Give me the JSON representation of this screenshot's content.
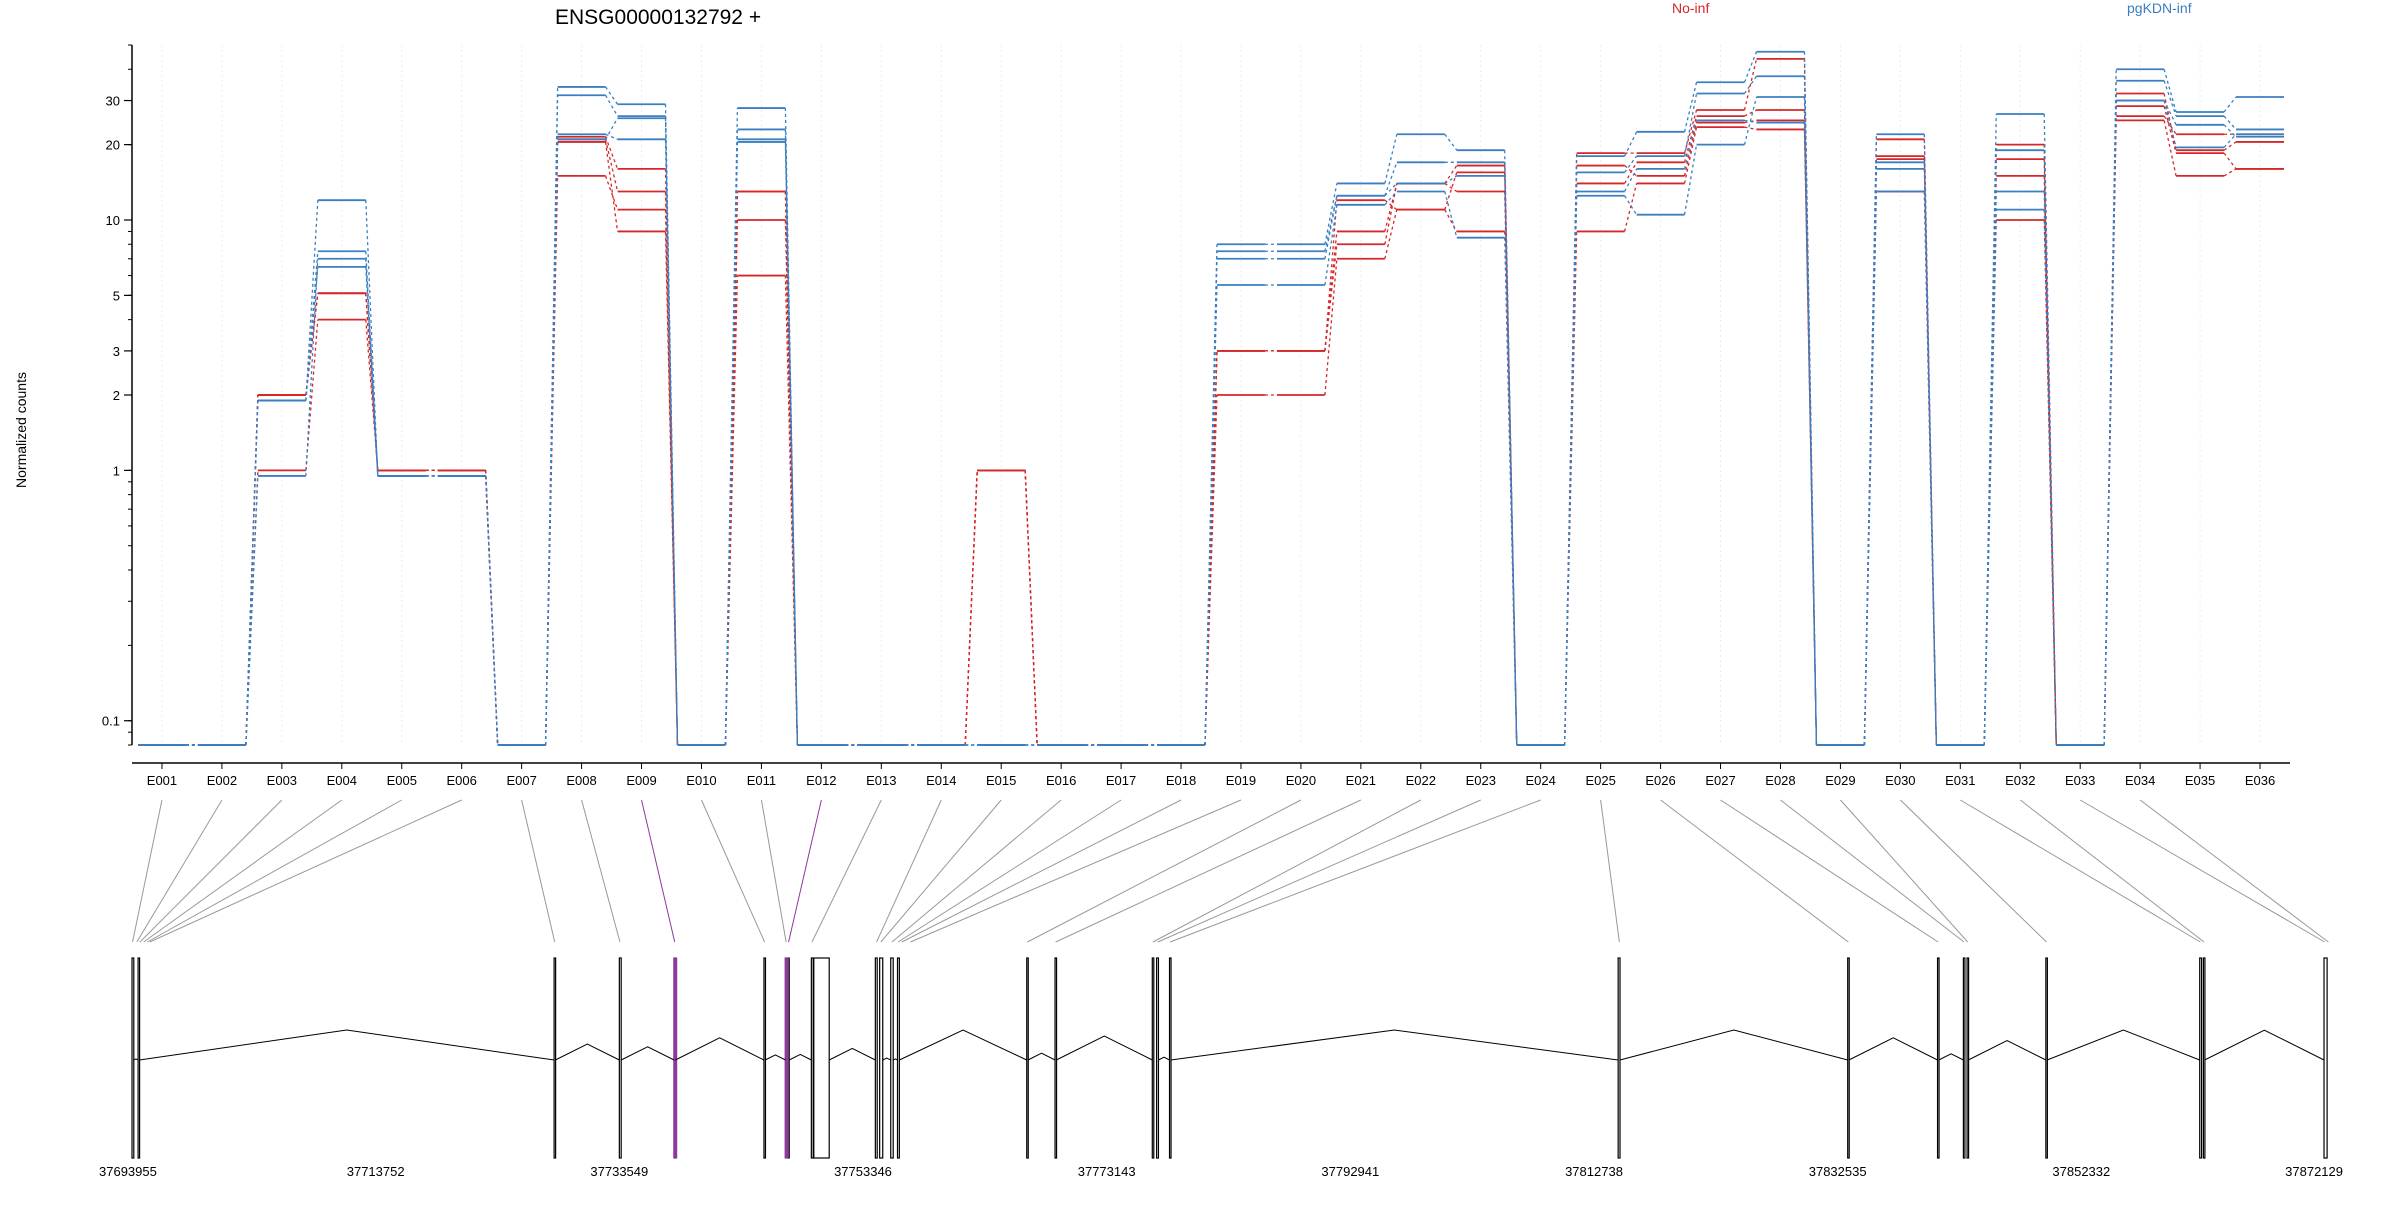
{
  "chart_data": {
    "type": "line",
    "title": "ENSG00000132792 +",
    "ylabel": "Normalized counts",
    "yscale": "log",
    "ylim": [
      0.08,
      50
    ],
    "yticks": [
      0.1,
      1,
      2,
      3,
      5,
      10,
      20,
      30
    ],
    "ytick_labels": [
      "0.1",
      "1",
      "2",
      "3",
      "5",
      "10",
      "20",
      "30"
    ],
    "categories": [
      "E001",
      "E002",
      "E003",
      "E004",
      "E005",
      "E006",
      "E007",
      "E008",
      "E009",
      "E010",
      "E011",
      "E012",
      "E013",
      "E014",
      "E015",
      "E016",
      "E017",
      "E018",
      "E019",
      "E020",
      "E021",
      "E022",
      "E023",
      "E024",
      "E025",
      "E026",
      "E027",
      "E028",
      "E029",
      "E030",
      "E031",
      "E032",
      "E033",
      "E034",
      "E035",
      "E036"
    ],
    "legend": [
      {
        "label": "No-inf",
        "color": "#d62728"
      },
      {
        "label": "pgKDN-inf",
        "color": "#3a7fc1"
      }
    ],
    "series": [
      {
        "group": "No-inf",
        "color": "#d62728",
        "values": [
          0.08,
          0.08,
          2.0,
          5.1,
          1.0,
          1.0,
          0.08,
          21.5,
          16.0,
          0.08,
          13.0,
          0.08,
          0.08,
          0.08,
          1.0,
          0.08,
          0.08,
          0.08,
          3.0,
          3.0,
          9.0,
          14.0,
          16.5,
          0.08,
          18.5,
          18.5,
          27.5,
          44.0,
          0.08,
          21.0,
          0.08,
          20.0,
          0.08,
          32.0,
          19.0,
          20.5
        ]
      },
      {
        "group": "No-inf",
        "color": "#d62728",
        "values": [
          0.08,
          0.08,
          1.0,
          4.0,
          1.0,
          1.0,
          0.08,
          21.0,
          13.0,
          0.08,
          10.0,
          0.08,
          0.08,
          0.08,
          1.0,
          0.08,
          0.08,
          0.08,
          3.0,
          3.0,
          8.0,
          14.0,
          13.0,
          0.08,
          14.0,
          17.0,
          26.0,
          27.5,
          0.08,
          18.0,
          0.08,
          17.5,
          0.08,
          28.5,
          18.5,
          16.0
        ]
      },
      {
        "group": "No-inf",
        "color": "#d62728",
        "values": [
          0.08,
          0.08,
          2.0,
          5.1,
          1.0,
          1.0,
          0.08,
          15.0,
          11.0,
          0.08,
          6.0,
          0.08,
          0.08,
          0.08,
          1.0,
          0.08,
          0.08,
          0.08,
          2.0,
          2.0,
          7.0,
          11.0,
          9.0,
          0.08,
          9.0,
          14.0,
          23.5,
          23.0,
          0.08,
          13.0,
          0.08,
          15.0,
          0.08,
          25.0,
          15.0,
          16.0
        ]
      },
      {
        "group": "No-inf",
        "color": "#d62728",
        "values": [
          0.08,
          0.08,
          2.0,
          5.1,
          1.0,
          1.0,
          0.08,
          20.5,
          9.0,
          0.08,
          13.0,
          0.08,
          0.08,
          0.08,
          1.0,
          0.08,
          0.08,
          0.08,
          3.0,
          3.0,
          12.0,
          11.0,
          15.5,
          0.08,
          16.5,
          15.0,
          24.5,
          25.0,
          0.08,
          17.5,
          0.08,
          10.0,
          0.08,
          26.0,
          22.0,
          22.0
        ]
      },
      {
        "group": "pgKDN-inf",
        "color": "#3a7fc1",
        "values": [
          0.08,
          0.08,
          0.95,
          7.0,
          0.95,
          0.95,
          0.08,
          34.0,
          29.0,
          0.08,
          28.0,
          0.08,
          0.08,
          0.08,
          0.08,
          0.08,
          0.08,
          0.08,
          8.0,
          8.0,
          14.0,
          22.0,
          19.0,
          0.08,
          18.0,
          22.5,
          35.5,
          47.0,
          0.08,
          22.0,
          0.08,
          26.5,
          0.08,
          40.0,
          27.0,
          31.0
        ]
      },
      {
        "group": "pgKDN-inf",
        "color": "#3a7fc1",
        "values": [
          0.08,
          0.08,
          1.9,
          12.0,
          0.95,
          0.95,
          0.08,
          31.5,
          26.0,
          0.08,
          23.0,
          0.08,
          0.08,
          0.08,
          0.08,
          0.08,
          0.08,
          0.08,
          7.5,
          7.5,
          12.5,
          17.0,
          17.0,
          0.08,
          15.5,
          18.0,
          32.0,
          37.5,
          0.08,
          17.0,
          0.08,
          19.0,
          0.08,
          36.0,
          26.0,
          23.0
        ]
      },
      {
        "group": "pgKDN-inf",
        "color": "#3a7fc1",
        "values": [
          0.08,
          0.08,
          1.9,
          6.5,
          0.95,
          0.95,
          0.08,
          22.0,
          21.0,
          0.08,
          21.0,
          0.08,
          0.08,
          0.08,
          0.08,
          0.08,
          0.08,
          0.08,
          5.5,
          5.5,
          11.5,
          13.0,
          8.5,
          0.08,
          12.5,
          10.5,
          20.0,
          31.0,
          0.08,
          16.0,
          0.08,
          13.0,
          0.08,
          30.0,
          24.0,
          21.5
        ]
      },
      {
        "group": "pgKDN-inf",
        "color": "#3a7fc1",
        "values": [
          0.08,
          0.08,
          1.9,
          7.5,
          0.95,
          0.95,
          0.08,
          21.0,
          25.5,
          0.08,
          20.5,
          0.08,
          0.08,
          0.08,
          0.08,
          0.08,
          0.08,
          0.08,
          7.0,
          7.0,
          12.5,
          14.0,
          15.0,
          0.08,
          13.0,
          16.0,
          25.0,
          24.5,
          0.08,
          13.0,
          0.08,
          11.0,
          0.08,
          30.0,
          19.5,
          22.0
        ]
      }
    ],
    "gene_model": {
      "coord_ticks": [
        37693955,
        37713752,
        37733549,
        37753346,
        37773143,
        37792941,
        37812738,
        37832535,
        37852332,
        37872129
      ],
      "coord_tick_labels": [
        "37693955",
        "37713752",
        "37733549",
        "37753346",
        "37773143",
        "37792941",
        "37812738",
        "37832535",
        "37852332",
        "37872129"
      ],
      "highlight_color": "#8b3a9a",
      "exon_positions": [
        37694000,
        37694350,
        37694600,
        37694900,
        37695200,
        37695400,
        37728300,
        37733600,
        37738050,
        37745350,
        37747100,
        37747300,
        37749200,
        37754450,
        37754800,
        37755700,
        37756200,
        37756500,
        37757200,
        37766700,
        37769000,
        37776900,
        37777300,
        37778300,
        37814800,
        37833400,
        37840700,
        37842800,
        37843100,
        37849500,
        37862000,
        37862300,
        37872100,
        37872400
      ],
      "highlighted_exons": [
        8,
        11
      ],
      "exon_blocks": [
        [
          37693955,
          37694100
        ],
        [
          37694450,
          37694550
        ],
        [
          37728250,
          37728350
        ],
        [
          37733550,
          37733700
        ],
        [
          37738000,
          37738100
        ],
        [
          37745300,
          37745400
        ],
        [
          37747050,
          37747350
        ],
        [
          37749150,
          37749300
        ],
        [
          37749350,
          37750600
        ],
        [
          37754350,
          37754500
        ],
        [
          37754700,
          37754950
        ],
        [
          37755600,
          37755800
        ],
        [
          37756150,
          37756300
        ],
        [
          37766650,
          37766750
        ],
        [
          37768950,
          37769050
        ],
        [
          37776850,
          37776950
        ],
        [
          37777200,
          37777350
        ],
        [
          37778250,
          37778350
        ],
        [
          37814700,
          37814850
        ],
        [
          37833350,
          37833450
        ],
        [
          37840650,
          37840750
        ],
        [
          37842750,
          37842850
        ],
        [
          37843050,
          37843150
        ],
        [
          37849450,
          37849550
        ],
        [
          37861950,
          37862100
        ],
        [
          37862250,
          37862350
        ],
        [
          37872050,
          37872300
        ]
      ]
    }
  }
}
